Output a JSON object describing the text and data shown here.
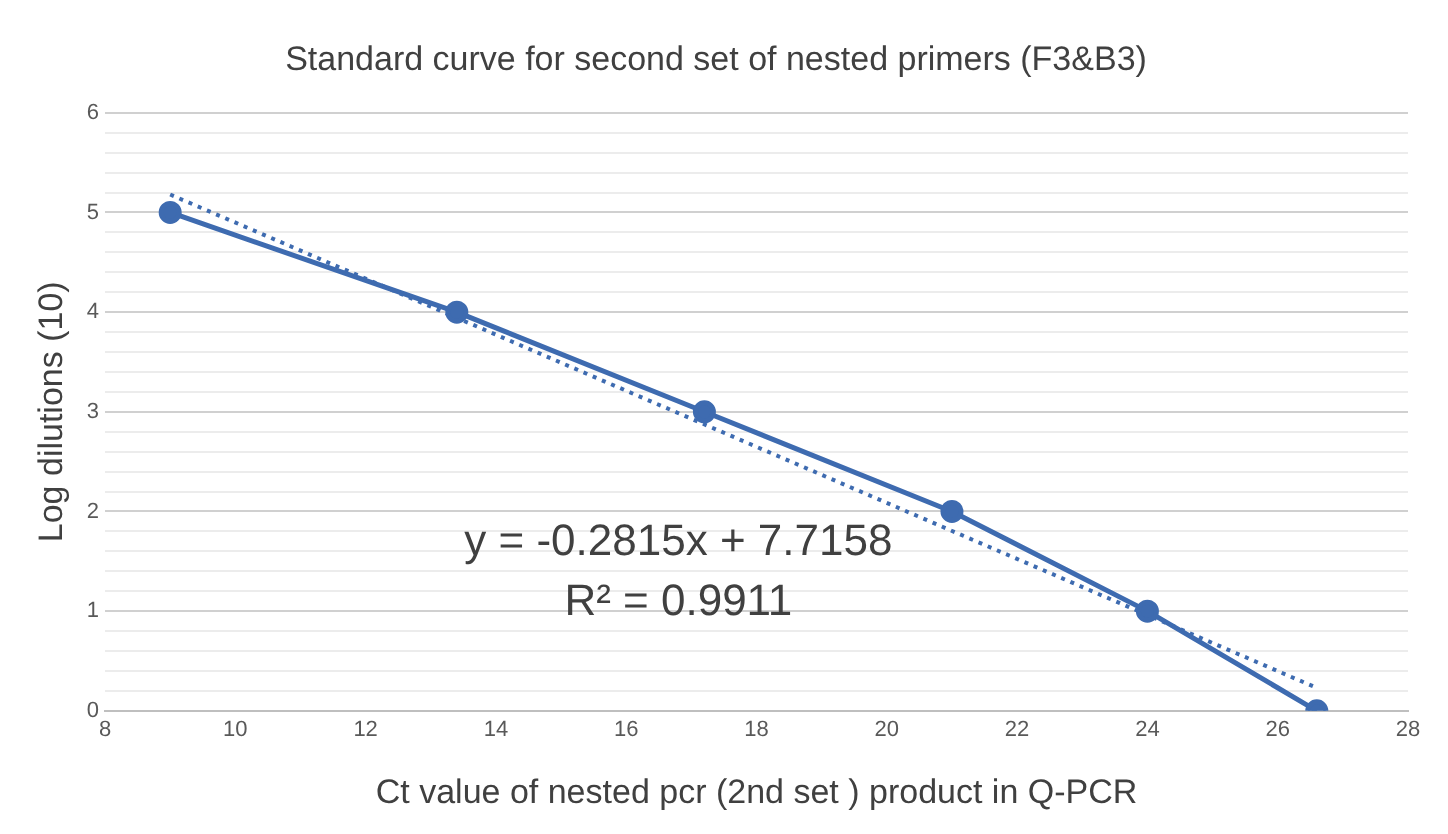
{
  "chart_data": {
    "type": "line",
    "title": "Standard curve for second set of nested primers (F3&B3)",
    "xlabel": "Ct value of nested pcr (2nd set ) product in Q-PCR",
    "ylabel": "Log dilutions (10)",
    "series": [
      {
        "color": "#3e6bb0",
        "x": [
          9,
          13.4,
          17.2,
          21,
          24,
          26.6
        ],
        "values": [
          5,
          4,
          3,
          2,
          1,
          0
        ],
        "marker": "circle",
        "line_style": "solid"
      },
      {
        "color": "#3e6bb0",
        "x": [
          9,
          26.6
        ],
        "values": [
          5.18,
          0.23
        ],
        "marker": "none",
        "line_style": "dotted"
      }
    ],
    "xlim": [
      8,
      28
    ],
    "xticks": [
      8,
      10,
      12,
      14,
      16,
      18,
      20,
      22,
      24,
      26,
      28
    ],
    "ylim": [
      0,
      6
    ],
    "yticks": [
      0,
      {
        "value": 0.2,
        "label": null
      },
      {
        "value": 0.4,
        "label": null
      },
      {
        "value": 0.6,
        "label": null
      },
      {
        "value": 0.8,
        "label": null
      },
      1,
      {
        "value": 1.2,
        "label": null
      },
      {
        "value": 1.4,
        "label": null
      },
      {
        "value": 1.6,
        "label": null
      },
      {
        "value": 1.8,
        "label": null
      },
      2,
      {
        "value": 2.2,
        "label": null
      },
      {
        "value": 2.4,
        "label": null
      },
      {
        "value": 2.6,
        "label": null
      },
      {
        "value": 2.8,
        "label": null
      },
      3,
      {
        "value": 3.2,
        "label": null
      },
      {
        "value": 3.4,
        "label": null
      },
      {
        "value": 3.6,
        "label": null
      },
      {
        "value": 3.8,
        "label": null
      },
      4,
      {
        "value": 4.2,
        "label": null
      },
      {
        "value": 4.4,
        "label": null
      },
      {
        "value": 4.6,
        "label": null
      },
      {
        "value": 4.8,
        "label": null
      },
      5,
      {
        "value": 5.2,
        "label": null
      },
      {
        "value": 5.4,
        "label": null
      },
      {
        "value": 5.6,
        "label": null
      },
      {
        "value": 5.8,
        "label": null
      },
      6
    ],
    "grid": "y",
    "legend": false,
    "annotations": [
      "y = -0.2815x + 7.7158",
      "R² = 0.9911"
    ]
  }
}
